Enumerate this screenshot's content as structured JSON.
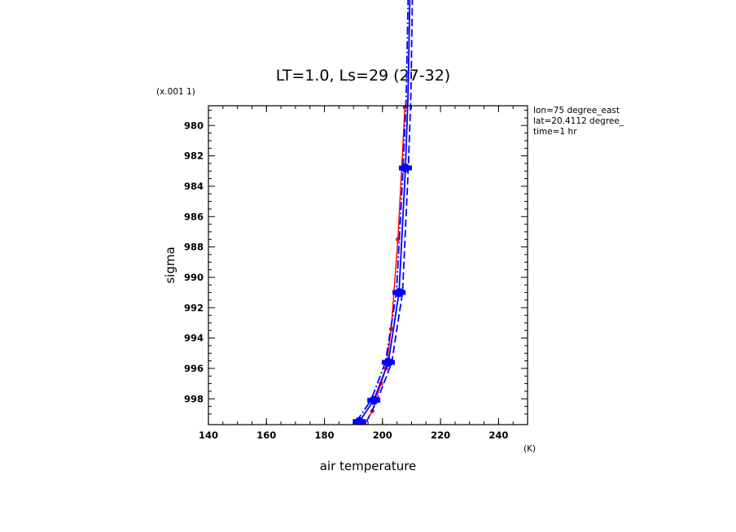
{
  "chart_data": {
    "type": "line",
    "title": "LT=1.0, Ls=29 (27-32)",
    "xlabel": "air temperature",
    "ylabel": "sigma",
    "x_units": "(K)",
    "y_scale_note": "(x.001 1)",
    "xlim": [
      140,
      250
    ],
    "ylim": [
      999.7,
      978.7
    ],
    "y_inverted": true,
    "x_ticks": [
      140,
      160,
      180,
      200,
      220,
      240
    ],
    "y_ticks": [
      980,
      982,
      984,
      986,
      988,
      990,
      992,
      994,
      996,
      998
    ],
    "annotations": [
      "lon=75 degree_east",
      "lat=20.4112 degree_",
      "time=1 hr"
    ],
    "grid": false,
    "series": [
      {
        "color": "#ff0000",
        "style": "solid",
        "points": [
          {
            "x": 193.8,
            "y": 999.7
          },
          {
            "x": 196.5,
            "y": 998.8
          },
          {
            "x": 199.5,
            "y": 997.0
          },
          {
            "x": 201.2,
            "y": 996.0
          },
          {
            "x": 203.0,
            "y": 993.4
          },
          {
            "x": 205.3,
            "y": 987.5
          },
          {
            "x": 207.7,
            "y": 978.8
          }
        ]
      },
      {
        "color": "#0000ff",
        "style": "solid",
        "markers": true,
        "points": [
          {
            "x": 192.0,
            "y": 999.5
          },
          {
            "x": 197.0,
            "y": 998.1
          },
          {
            "x": 202.0,
            "y": 995.6
          },
          {
            "x": 205.7,
            "y": 991.0
          },
          {
            "x": 207.9,
            "y": 982.8
          },
          {
            "x": 208.8,
            "y": 978.0
          },
          {
            "x": 209.6,
            "y": 970.0
          }
        ]
      },
      {
        "color": "#0000ff",
        "style": "dashed",
        "points": [
          {
            "x": 194.5,
            "y": 999.5
          },
          {
            "x": 198.2,
            "y": 998.1
          },
          {
            "x": 203.2,
            "y": 995.6
          },
          {
            "x": 206.9,
            "y": 991.0
          },
          {
            "x": 208.9,
            "y": 982.8
          },
          {
            "x": 209.8,
            "y": 978.0
          },
          {
            "x": 210.4,
            "y": 970.0
          }
        ]
      },
      {
        "color": "#0000ff",
        "style": "dash-dot",
        "points": [
          {
            "x": 191.0,
            "y": 999.5
          },
          {
            "x": 196.0,
            "y": 998.1
          },
          {
            "x": 201.0,
            "y": 995.6
          },
          {
            "x": 204.8,
            "y": 991.0
          },
          {
            "x": 207.1,
            "y": 982.8
          },
          {
            "x": 208.2,
            "y": 978.0
          },
          {
            "x": 209.0,
            "y": 970.0
          }
        ]
      }
    ]
  }
}
